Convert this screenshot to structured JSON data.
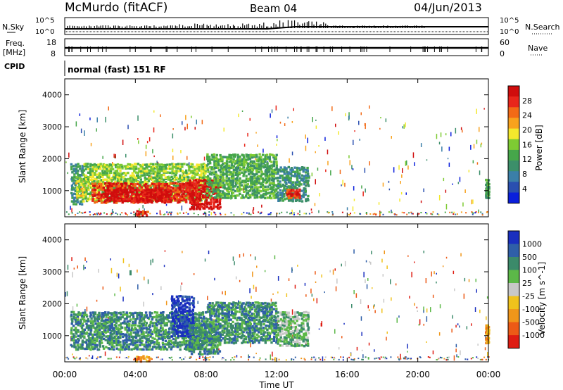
{
  "header": {
    "station": "McMurdo (fitACF)",
    "beam": "Beam 04",
    "date": "04/Jun/2013"
  },
  "status_panels": {
    "nsky_label": "N.Sky",
    "nsky_ticks": [
      "10^5",
      "10^0"
    ],
    "nsearch_label": "N.Search",
    "nsearch_ticks": [
      "10^5",
      "10^0"
    ],
    "freq_label": "Freq.",
    "freq_unit": "[MHz]",
    "freq_ticks": [
      "18",
      "8"
    ],
    "nave_label": "Nave",
    "nave_ticks": [
      "60",
      "0"
    ],
    "cpid_label": "CPID",
    "cpid_value": "normal (fast) 151 RF"
  },
  "chart_data": [
    {
      "type": "heatmap",
      "name": "power-panel",
      "ylabel": "Slant Range [km]",
      "ylim": [
        180,
        4500
      ],
      "yticks": [
        1000,
        2000,
        3000,
        4000
      ],
      "xlim": [
        0,
        24
      ],
      "colorbar": {
        "label": "Power [dB]",
        "ticks": [
          "4",
          "8",
          "12",
          "16",
          "20",
          "24",
          "28"
        ],
        "colors": [
          "#0a1fdc",
          "#2a4fb0",
          "#3b7fa8",
          "#3c8f6a",
          "#46a64a",
          "#7ecb33",
          "#f3e82d",
          "#f8a21d",
          "#f26a16",
          "#e8261b",
          "#d00d0d"
        ]
      },
      "regions": [
        {
          "x0": 0.3,
          "x1": 1.0,
          "y0": 600,
          "y1": 1900,
          "level": 3
        },
        {
          "x0": 0.6,
          "x1": 1.2,
          "y0": 800,
          "y1": 1500,
          "level": 6
        },
        {
          "x0": 1.0,
          "x1": 8.0,
          "y0": 700,
          "y1": 1900,
          "level": 5
        },
        {
          "x0": 1.5,
          "x1": 7.5,
          "y0": 650,
          "y1": 1300,
          "level": 9
        },
        {
          "x0": 2.2,
          "x1": 6.0,
          "y0": 700,
          "y1": 1100,
          "level": 10
        },
        {
          "x0": 4.0,
          "x1": 4.8,
          "y0": 220,
          "y1": 420,
          "level": 9
        },
        {
          "x0": 7.0,
          "x1": 8.8,
          "y0": 450,
          "y1": 1400,
          "level": 10
        },
        {
          "x0": 8.0,
          "x1": 12.0,
          "y0": 800,
          "y1": 2200,
          "level": 4
        },
        {
          "x0": 12.0,
          "x1": 13.8,
          "y0": 700,
          "y1": 1800,
          "level": 3
        },
        {
          "x0": 12.5,
          "x1": 13.3,
          "y0": 800,
          "y1": 1100,
          "level": 9
        },
        {
          "x0": 23.8,
          "x1": 24.0,
          "y0": 800,
          "y1": 1400,
          "level": 4
        }
      ]
    },
    {
      "type": "heatmap",
      "name": "velocity-panel",
      "ylabel": "Slant Range [km]",
      "ylim": [
        180,
        4500
      ],
      "yticks": [
        1000,
        2000,
        3000,
        4000
      ],
      "xlim": [
        0,
        24
      ],
      "xticks": [
        "00:00",
        "04:00",
        "08:00",
        "12:00",
        "16:00",
        "20:00",
        "00:00"
      ],
      "xlabel": "Time UT",
      "colorbar": {
        "label": "Velocity [m s^-1]",
        "ticks": [
          "1000",
          "500",
          "100",
          "25",
          "-25",
          "-100",
          "-500",
          "-1000"
        ],
        "colors": [
          "#1a2fbf",
          "#2f5fa8",
          "#3b8a6a",
          "#5cb848",
          "#c8c8c8",
          "#f0c21c",
          "#f0961a",
          "#ec5a16",
          "#de1c12"
        ]
      },
      "regions": [
        {
          "x0": 0.3,
          "x1": 8.0,
          "y0": 600,
          "y1": 1800,
          "level": 2
        },
        {
          "x0": 6.0,
          "x1": 7.3,
          "y0": 1000,
          "y1": 2300,
          "level": 0
        },
        {
          "x0": 4.0,
          "x1": 4.8,
          "y0": 220,
          "y1": 420,
          "level": 6
        },
        {
          "x0": 7.0,
          "x1": 8.8,
          "y0": 450,
          "y1": 1400,
          "level": 2
        },
        {
          "x0": 8.0,
          "x1": 12.0,
          "y0": 800,
          "y1": 2100,
          "level": 2
        },
        {
          "x0": 12.0,
          "x1": 13.8,
          "y0": 700,
          "y1": 1800,
          "level": 3
        },
        {
          "x0": 23.8,
          "x1": 24.0,
          "y0": 800,
          "y1": 1400,
          "level": 6
        }
      ]
    }
  ]
}
